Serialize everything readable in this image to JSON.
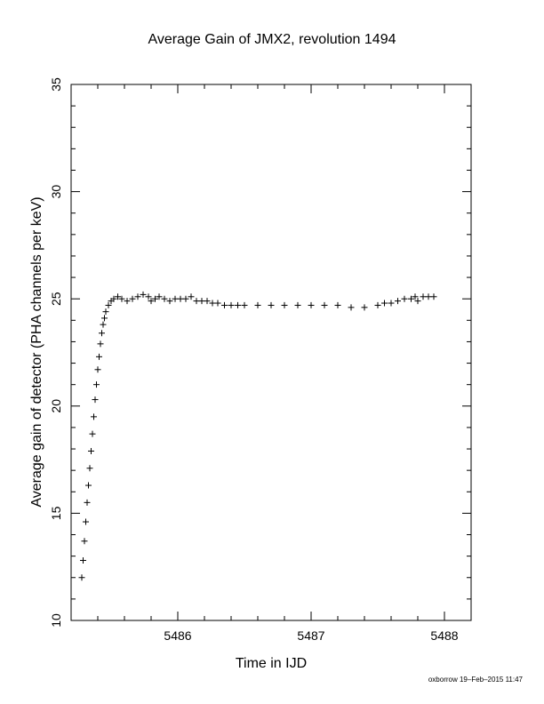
{
  "chart_data": {
    "type": "scatter",
    "title": "Average Gain of JMX2, revolution 1494",
    "xlabel": "Time in IJD",
    "ylabel": "Average gain of detector (PHA channels per keV)",
    "xlim": [
      5485.2,
      5488.2
    ],
    "ylim": [
      10,
      35
    ],
    "xticks": [
      5486,
      5487,
      5488
    ],
    "yticks": [
      10,
      15,
      20,
      25,
      30,
      35
    ],
    "grid": false,
    "marker": "plus",
    "series": [
      {
        "x": [
          5485.28,
          5485.29,
          5485.3,
          5485.31,
          5485.32,
          5485.33,
          5485.34,
          5485.35,
          5485.36,
          5485.37,
          5485.38,
          5485.39,
          5485.4,
          5485.41,
          5485.42,
          5485.43,
          5485.44,
          5485.45,
          5485.46,
          5485.48,
          5485.5,
          5485.52,
          5485.55,
          5485.58,
          5485.62,
          5485.66,
          5485.7,
          5485.74,
          5485.78,
          5485.8,
          5485.83,
          5485.86,
          5485.9,
          5485.94,
          5485.98,
          5486.02,
          5486.06,
          5486.1,
          5486.14,
          5486.18,
          5486.22,
          5486.26,
          5486.3,
          5486.35,
          5486.4,
          5486.45,
          5486.5,
          5486.6,
          5486.7,
          5486.8,
          5486.9,
          5487.0,
          5487.1,
          5487.2,
          5487.3,
          5487.4,
          5487.5,
          5487.55,
          5487.6,
          5487.65,
          5487.7,
          5487.75,
          5487.78,
          5487.8,
          5487.84,
          5487.88,
          5487.92
        ],
        "y": [
          12.0,
          12.8,
          13.7,
          14.6,
          15.5,
          16.3,
          17.1,
          17.9,
          18.7,
          19.5,
          20.3,
          21.0,
          21.7,
          22.3,
          22.9,
          23.4,
          23.8,
          24.1,
          24.4,
          24.7,
          24.9,
          25.0,
          25.1,
          25.0,
          24.9,
          25.0,
          25.1,
          25.2,
          25.1,
          24.9,
          25.0,
          25.1,
          25.0,
          24.9,
          25.0,
          25.0,
          25.0,
          25.1,
          24.9,
          24.9,
          24.9,
          24.8,
          24.8,
          24.7,
          24.7,
          24.7,
          24.7,
          24.7,
          24.7,
          24.7,
          24.7,
          24.7,
          24.7,
          24.7,
          24.6,
          24.6,
          24.7,
          24.8,
          24.8,
          24.9,
          25.0,
          25.0,
          25.1,
          24.9,
          25.1,
          25.1,
          25.1
        ]
      }
    ]
  },
  "footer": {
    "stamp": "oxborrow 19–Feb–2015 11:47"
  }
}
